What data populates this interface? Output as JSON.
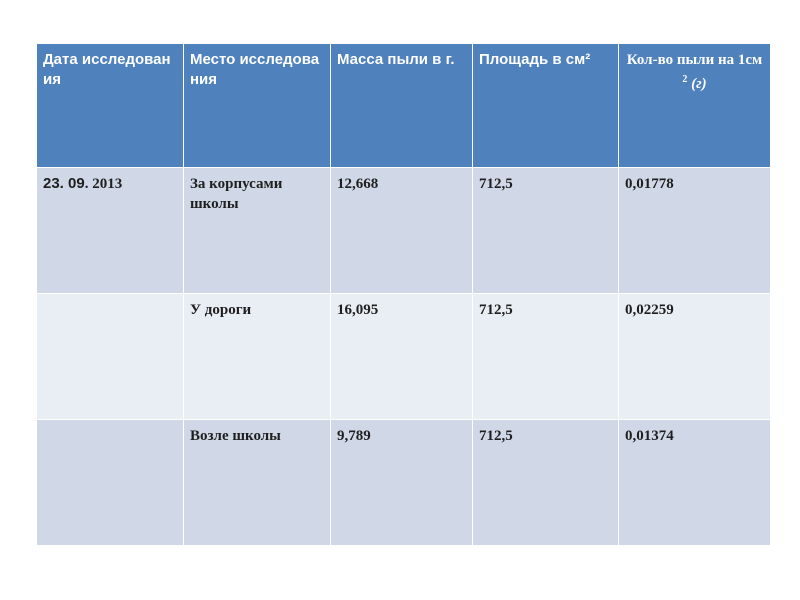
{
  "table": {
    "headers": {
      "date": "Дата исследования",
      "place": "Место исследования",
      "mass": "Масса пыли в г.",
      "area": "Площадь в см²",
      "dust_per_cm_prefix": "Кол-во пыли на 1см",
      "dust_per_cm_sup": "2",
      "dust_per_cm_unit": "(г)"
    },
    "rows": [
      {
        "date_day": "23. 09",
        "date_year": ". 2013",
        "place": "За корпусами школы",
        "mass": "12,668",
        "area": "712,5",
        "dust": "0,01778"
      },
      {
        "date_day": "",
        "date_year": "",
        "place": "У дороги",
        "mass": "16,095",
        "area": "712,5",
        "dust": "0,02259"
      },
      {
        "date_day": "",
        "date_year": "",
        "place": "Возле школы",
        "mass": "9,789",
        "area": "712,5",
        "dust": "0,01374"
      }
    ]
  },
  "colors": {
    "header_bg": "#4f81bd",
    "row_odd_bg": "#d0d8e8",
    "row_even_bg": "#e9edf4"
  }
}
